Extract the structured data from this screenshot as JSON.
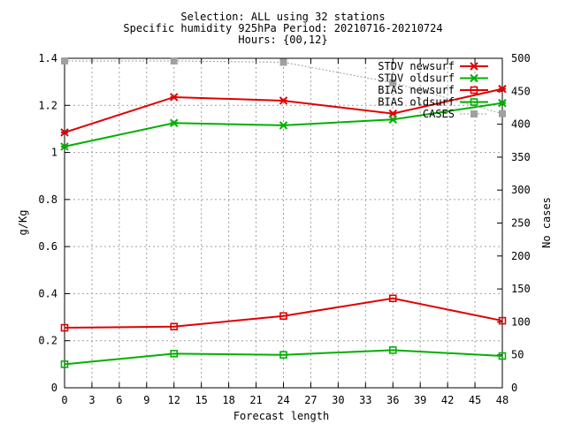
{
  "chart_data": {
    "type": "line",
    "title_lines": [
      "Selection: ALL using    32 stations",
      "Specific humidity 925hPa   Period: 20210716-20210724",
      "Hours: {00,12}"
    ],
    "xlabel": "Forecast length",
    "ylabel": "g/Kg",
    "y2label": "No cases",
    "xlim": [
      0,
      48
    ],
    "ylim": [
      0,
      1.4
    ],
    "y2lim": [
      0,
      500
    ],
    "xticks": [
      0,
      3,
      6,
      9,
      12,
      15,
      18,
      21,
      24,
      27,
      30,
      33,
      36,
      39,
      42,
      45,
      48
    ],
    "yticks": [
      0,
      0.2,
      0.4,
      0.6,
      0.8,
      1,
      1.2,
      1.4
    ],
    "ytick_labels": [
      "0",
      "0.2",
      "0.4",
      "0.6",
      "0.8",
      "1",
      "1.2",
      "1.4"
    ],
    "y2ticks": [
      0,
      50,
      100,
      150,
      200,
      250,
      300,
      350,
      400,
      450,
      500
    ],
    "grid": true,
    "legend_position": "top-right",
    "x": [
      0,
      12,
      24,
      36,
      48
    ],
    "series": [
      {
        "name": "STDV newsurf",
        "axis": "y",
        "marker": "x",
        "color": "#e00000",
        "values": [
          1.085,
          1.235,
          1.22,
          1.165,
          1.27
        ]
      },
      {
        "name": "STDV oldsurf",
        "axis": "y",
        "marker": "x",
        "color": "#00b000",
        "values": [
          1.025,
          1.125,
          1.115,
          1.14,
          1.21
        ]
      },
      {
        "name": "BIAS newsurf",
        "axis": "y",
        "marker": "square",
        "color": "#e00000",
        "values": [
          0.255,
          0.26,
          0.305,
          0.38,
          0.285
        ]
      },
      {
        "name": "BIAS oldsurf",
        "axis": "y",
        "marker": "square",
        "color": "#00b000",
        "values": [
          0.1,
          0.145,
          0.14,
          0.16,
          0.135
        ]
      },
      {
        "name": "CASES",
        "axis": "y2",
        "marker": "filled-square",
        "color": "#a0a0a0",
        "values": [
          496,
          496,
          494,
          463,
          416
        ]
      }
    ]
  }
}
